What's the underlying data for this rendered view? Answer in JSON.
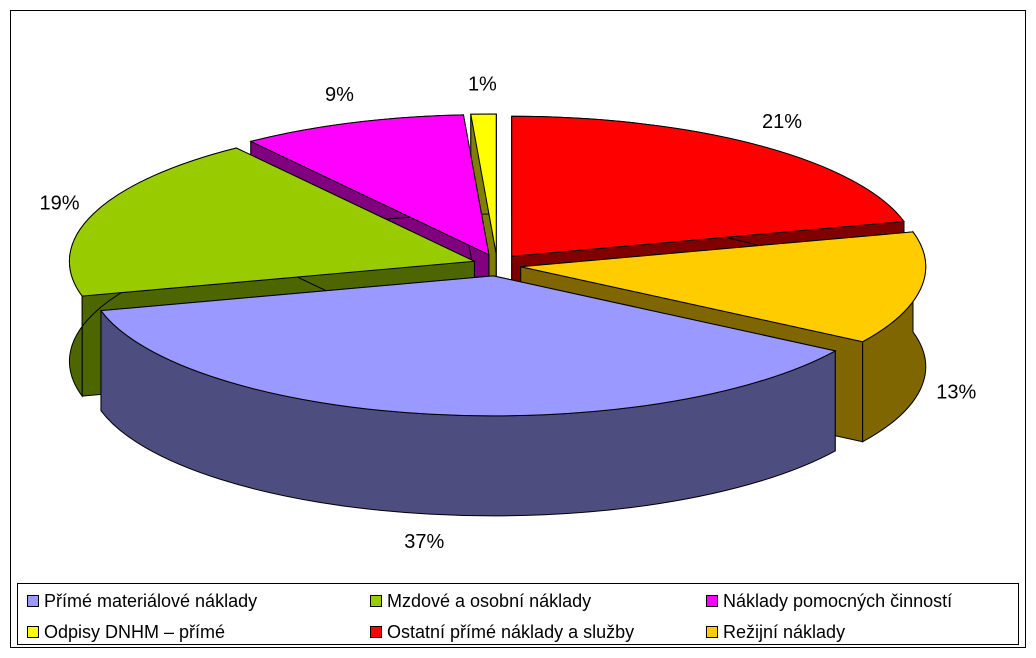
{
  "chart_data": {
    "type": "pie",
    "categories": [
      "Přímé materiálové náklady",
      "Mzdové a osobní náklady",
      "Náklady pomocných činností",
      "Odpisy DNHM – přímé",
      "Ostatní přímé náklady a služby",
      "Režijní náklady"
    ],
    "values": [
      37,
      19,
      9,
      1,
      21,
      13
    ],
    "value_labels": [
      "37%",
      "19%",
      "9%",
      "1%",
      "21%",
      "13%"
    ],
    "colors": [
      "#9999ff",
      "#99cc00",
      "#ff00ff",
      "#ffff00",
      "#ff0000",
      "#ffcc00"
    ],
    "three_d": true,
    "exploded": true,
    "legend": "bottom"
  }
}
